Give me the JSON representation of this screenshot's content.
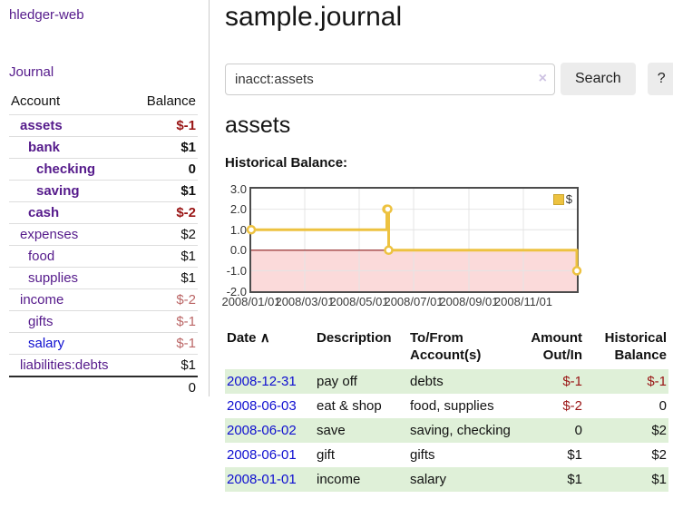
{
  "app": {
    "title": "hledger-web"
  },
  "sidebar": {
    "journal_link": "Journal",
    "headers": {
      "account": "Account",
      "balance": "Balance"
    },
    "accounts": [
      {
        "name": "assets",
        "balance": "$-1"
      },
      {
        "name": "bank",
        "balance": "$1"
      },
      {
        "name": "checking",
        "balance": "0"
      },
      {
        "name": "saving",
        "balance": "$1"
      },
      {
        "name": "cash",
        "balance": "$-2"
      },
      {
        "name": "expenses",
        "balance": "$2"
      },
      {
        "name": "food",
        "balance": "$1"
      },
      {
        "name": "supplies",
        "balance": "$1"
      },
      {
        "name": "income",
        "balance": "$-2"
      },
      {
        "name": "gifts",
        "balance": "$-1"
      },
      {
        "name": "salary",
        "balance": "$-1"
      },
      {
        "name": "liabilities:debts",
        "balance": "$1"
      }
    ],
    "total": "0"
  },
  "header": {
    "title": "sample.journal"
  },
  "search": {
    "value": "inacct:assets",
    "clear_icon": "×",
    "button": "Search",
    "help_button": "?"
  },
  "account_page": {
    "heading": "assets",
    "chart_label": "Historical Balance:"
  },
  "chart_data": {
    "type": "line",
    "step": true,
    "title": "Historical Balance:",
    "legend_label": "$",
    "points": [
      {
        "date": "2008-01-01",
        "value": 1
      },
      {
        "date": "2008-06-01",
        "value": 2
      },
      {
        "date": "2008-06-02",
        "value": 2
      },
      {
        "date": "2008-06-03",
        "value": 0
      },
      {
        "date": "2008-12-31",
        "value": -1
      }
    ],
    "xlim": [
      "2008-01-01",
      "2008-12-31"
    ],
    "ylim": [
      -2,
      3
    ],
    "yticks": [
      "3.0",
      "2.0",
      "1.0",
      "0.0",
      "-1.0",
      "-2.0"
    ],
    "xticks": [
      "2008/01/01",
      "2008/03/01",
      "2008/05/01",
      "2008/07/01",
      "2008/09/01",
      "2008/11/01"
    ],
    "grid": true,
    "legend_position": "top-right",
    "colors": {
      "line": "#edc240",
      "negative_fill": "#fbdada",
      "zero_line": "#8b1a1a",
      "grid": "#e4e4e4",
      "border": "#4c4c4c"
    }
  },
  "register": {
    "headers": {
      "date": "Date",
      "date_arrow": "∧",
      "description": "Description",
      "account_line1": "To/From",
      "account_line2": "Account(s)",
      "amount_line1": "Amount",
      "amount_line2": "Out/In",
      "balance_line1": "Historical",
      "balance_line2": "Balance"
    },
    "rows": [
      {
        "date": "2008-12-31",
        "description": "pay off",
        "accounts": "debts",
        "amount": "$-1",
        "balance": "$-1"
      },
      {
        "date": "2008-06-03",
        "description": "eat & shop",
        "accounts": "food, supplies",
        "amount": "$-2",
        "balance": "0"
      },
      {
        "date": "2008-06-02",
        "description": "save",
        "accounts": "saving, checking",
        "amount": "0",
        "balance": "$2"
      },
      {
        "date": "2008-06-01",
        "description": "gift",
        "accounts": "gifts",
        "amount": "$1",
        "balance": "$2"
      },
      {
        "date": "2008-01-01",
        "description": "income",
        "accounts": "salary",
        "amount": "$1",
        "balance": "$1"
      }
    ]
  },
  "colors": {
    "accent_purple": "#551a8b",
    "link_blue": "#0f0fd0",
    "negative_strong": "#991414",
    "negative_soft": "#bb6666",
    "row_green": "#dff0d8",
    "series_yellow": "#edc240"
  }
}
